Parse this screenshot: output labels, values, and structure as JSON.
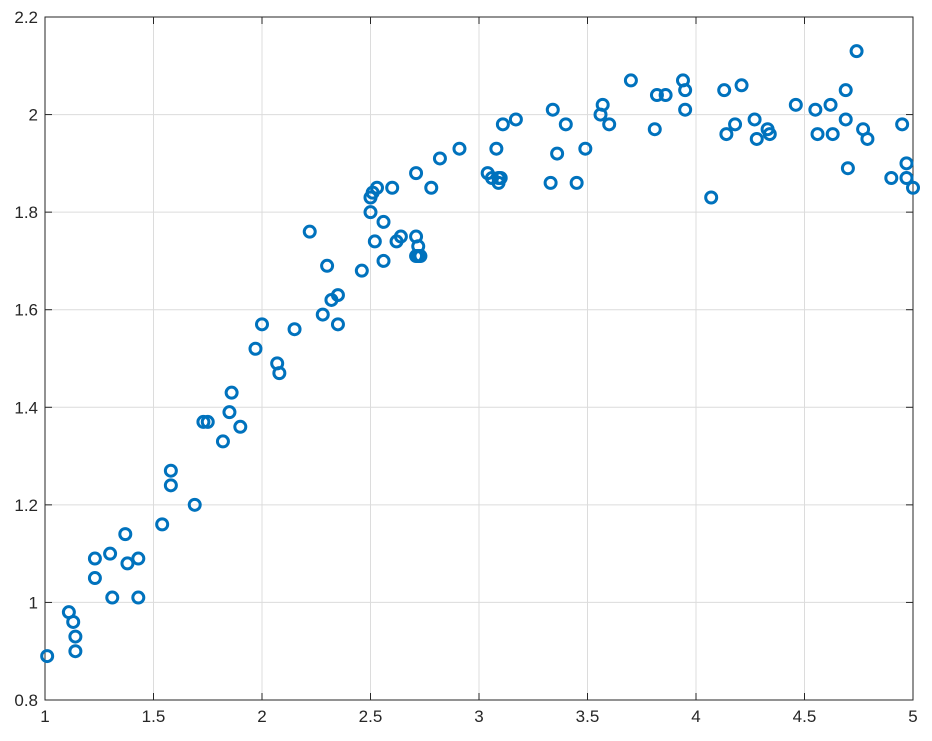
{
  "chart_data": {
    "type": "scatter",
    "title": "",
    "xlabel": "",
    "ylabel": "",
    "xlim": [
      1,
      5
    ],
    "ylim": [
      0.8,
      2.2
    ],
    "xticks": [
      1,
      1.5,
      2,
      2.5,
      3,
      3.5,
      4,
      4.5,
      5
    ],
    "yticks": [
      0.8,
      1,
      1.2,
      1.4,
      1.6,
      1.8,
      2,
      2.2
    ],
    "xtick_labels": [
      "1",
      "1.5",
      "2",
      "2.5",
      "3",
      "3.5",
      "4",
      "4.5",
      "5"
    ],
    "ytick_labels": [
      "0.8",
      "1",
      "1.2",
      "1.4",
      "1.6",
      "1.8",
      "2",
      "2.2"
    ],
    "grid": true,
    "marker": "o",
    "color": "#0072BD",
    "series": [
      {
        "x": [
          1.01,
          1.11,
          1.13,
          1.14,
          1.14,
          1.23,
          1.23,
          1.3,
          1.31,
          1.37,
          1.38,
          1.43,
          1.43,
          1.54,
          1.58,
          1.58,
          1.69,
          1.73,
          1.75,
          1.82,
          1.85,
          1.86,
          1.9,
          1.97,
          2.0,
          2.07,
          2.08,
          2.15,
          2.22,
          2.28,
          2.3,
          2.32,
          2.35,
          2.35,
          2.46,
          2.5,
          2.5,
          2.51,
          2.52,
          2.53,
          2.56,
          2.56,
          2.6,
          2.62,
          2.64,
          2.71,
          2.71,
          2.71,
          2.72,
          2.72,
          2.73,
          2.78,
          2.82,
          2.91,
          3.04,
          3.06,
          3.08,
          3.09,
          3.09,
          3.1,
          3.11,
          3.17,
          3.33,
          3.34,
          3.36,
          3.4,
          3.45,
          3.49,
          3.56,
          3.57,
          3.6,
          3.7,
          3.81,
          3.82,
          3.86,
          3.94,
          3.95,
          3.95,
          4.07,
          4.13,
          4.14,
          4.18,
          4.21,
          4.27,
          4.28,
          4.33,
          4.34,
          4.46,
          4.55,
          4.56,
          4.62,
          4.63,
          4.69,
          4.69,
          4.7,
          4.74,
          4.77,
          4.79,
          4.9,
          4.95,
          4.97,
          4.97,
          5.0
        ],
        "y": [
          0.89,
          0.98,
          0.96,
          0.93,
          0.9,
          1.09,
          1.05,
          1.1,
          1.01,
          1.14,
          1.08,
          1.09,
          1.01,
          1.16,
          1.27,
          1.24,
          1.2,
          1.37,
          1.37,
          1.33,
          1.39,
          1.43,
          1.36,
          1.52,
          1.57,
          1.49,
          1.47,
          1.56,
          1.76,
          1.59,
          1.69,
          1.62,
          1.63,
          1.57,
          1.68,
          1.83,
          1.8,
          1.84,
          1.74,
          1.85,
          1.78,
          1.7,
          1.85,
          1.74,
          1.75,
          1.88,
          1.75,
          1.71,
          1.73,
          1.71,
          1.71,
          1.85,
          1.91,
          1.93,
          1.88,
          1.87,
          1.93,
          1.87,
          1.86,
          1.87,
          1.98,
          1.99,
          1.86,
          2.01,
          1.92,
          1.98,
          1.86,
          1.93,
          2.0,
          2.02,
          1.98,
          2.07,
          1.97,
          2.04,
          2.04,
          2.07,
          2.05,
          2.01,
          1.83,
          2.05,
          1.96,
          1.98,
          2.06,
          1.99,
          1.95,
          1.97,
          1.96,
          2.02,
          2.01,
          1.96,
          2.02,
          1.96,
          2.05,
          1.99,
          1.89,
          2.13,
          1.97,
          1.95,
          1.87,
          1.98,
          1.9,
          1.87,
          1.85
        ]
      }
    ]
  }
}
